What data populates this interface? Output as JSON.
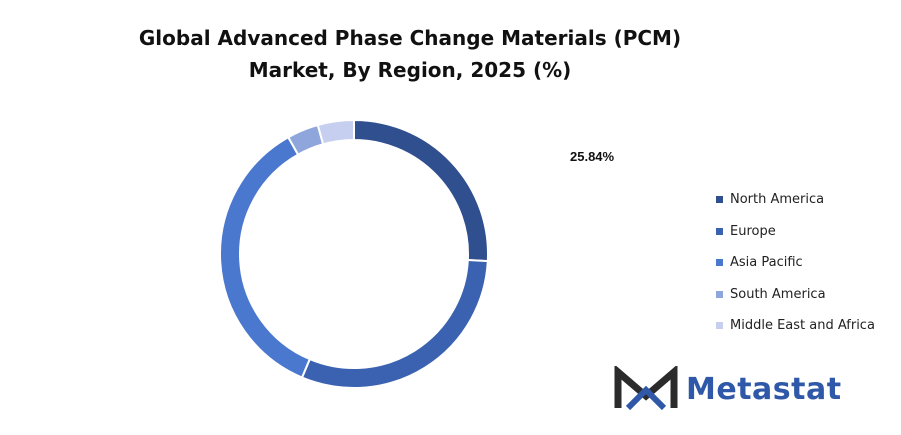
{
  "chart_data": {
    "type": "pie",
    "style": "donut",
    "title": "Global Advanced Phase Change Materials (PCM) Market, By Region, 2025 (%)",
    "categories": [
      "North America",
      "Europe",
      "Asia Pacific",
      "South America",
      "Middle East and Africa"
    ],
    "values": [
      25.84,
      30.5,
      35.5,
      3.8,
      4.36
    ],
    "data_labels": [
      "25.84%",
      "",
      "",
      "",
      ""
    ],
    "colors": [
      "#2f4f8f",
      "#3a62b0",
      "#4a78cf",
      "#8fa6dc",
      "#c6cff0"
    ],
    "legend": "right"
  },
  "logo": {
    "text": "Metastat",
    "colors": {
      "dark": "#2b2b2b",
      "accent": "#2f59a8"
    }
  }
}
